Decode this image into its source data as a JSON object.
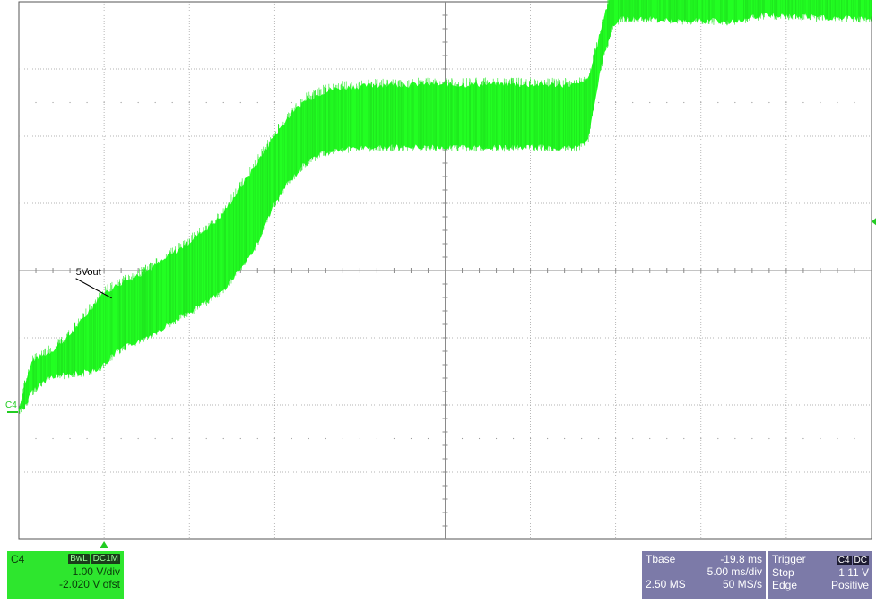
{
  "chart_data": {
    "type": "line",
    "title": "",
    "xlabel": "",
    "ylabel": "",
    "grid": true,
    "xlim": [
      -44.8,
      5.2
    ],
    "ylim": [
      -2.02,
      5.98
    ],
    "x_unit": "ms",
    "y_unit": "V",
    "series": [
      {
        "name": "5Vout",
        "color": "#22ff22",
        "x": [
          -44.8,
          -44.4,
          -44.0,
          -43.0,
          -42.0,
          -41.0,
          -40.0,
          -39.0,
          -37.0,
          -35.0,
          -33.0,
          -31.0,
          -30.0,
          -29.0,
          -28.0,
          -27.0,
          -26.0,
          -25.0,
          -24.0,
          -23.0,
          -22.0,
          -21.0,
          -20.0,
          -19.0,
          -17.0,
          -15.0,
          -13.0,
          -12.0,
          -11.4,
          -11.0,
          -10.5,
          -10.0,
          -9.5,
          -9.0,
          -8.0,
          -7.0,
          -5.0,
          -3.0,
          -1.0,
          1.0,
          3.0,
          5.2
        ],
        "y_upper": [
          -0.1,
          0.3,
          0.62,
          0.75,
          0.95,
          1.25,
          1.6,
          1.75,
          2.0,
          2.35,
          2.75,
          3.5,
          3.9,
          4.25,
          4.5,
          4.62,
          4.68,
          4.7,
          4.72,
          4.73,
          4.73,
          4.74,
          4.73,
          4.73,
          4.74,
          4.73,
          4.73,
          4.73,
          4.8,
          5.2,
          5.7,
          6.15,
          6.3,
          6.35,
          6.32,
          6.3,
          6.28,
          6.3,
          6.35,
          6.33,
          6.3,
          6.3
        ],
        "y_lower": [
          -0.1,
          0.0,
          0.2,
          0.42,
          0.45,
          0.48,
          0.55,
          0.8,
          1.05,
          1.35,
          1.65,
          2.3,
          2.9,
          3.3,
          3.6,
          3.75,
          3.8,
          3.82,
          3.83,
          3.83,
          3.83,
          3.83,
          3.83,
          3.83,
          3.83,
          3.83,
          3.83,
          3.83,
          3.95,
          4.6,
          5.2,
          5.6,
          5.75,
          5.75,
          5.75,
          5.72,
          5.72,
          5.7,
          5.8,
          5.78,
          5.75,
          5.75
        ]
      }
    ],
    "annotations": [
      {
        "text": "5Vout",
        "x": -40.3,
        "y": 1.65
      }
    ],
    "ground_marker": "C4",
    "divisions": {
      "x": 10,
      "y": 8
    }
  },
  "channel": {
    "name": "C4",
    "badges": [
      "BwL",
      "DC1M"
    ],
    "scale": "1.00 V/div",
    "offset": "-2.020 V ofst"
  },
  "timebase": {
    "label": "Tbase",
    "delay": "-19.8 ms",
    "scale": "5.00 ms/div",
    "memory": "2.50 MS",
    "sample_rate": "50 MS/s"
  },
  "trigger": {
    "label": "Trigger",
    "badges": [
      "C4",
      "DC"
    ],
    "mode": "Stop",
    "level": "1.11 V",
    "type": "Edge",
    "slope": "Positive"
  },
  "colors": {
    "trace": "#22ff22",
    "channel_panel": "#2ee62e",
    "info_panel": "#7c7aa8"
  }
}
